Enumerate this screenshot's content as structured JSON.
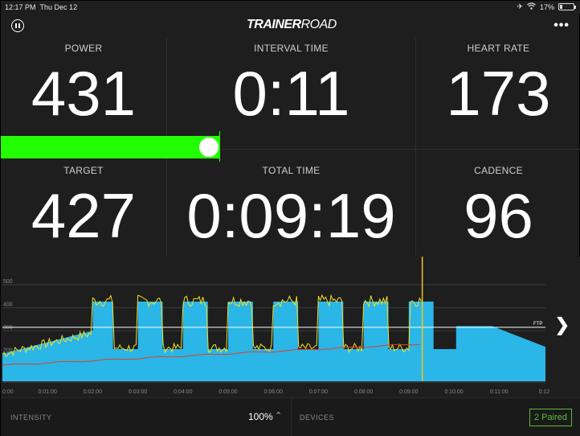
{
  "status_bar": {
    "time": "12:17 PM",
    "date": "Thu Dec 12",
    "battery": "17%",
    "icons": [
      "airplane-icon",
      "wifi-icon",
      "battery-icon"
    ]
  },
  "header": {
    "logo_bold": "TRAINER",
    "logo_thin": "ROAD",
    "pause_icon": "pause-icon",
    "more_icon": "more-icon"
  },
  "metrics": {
    "power": {
      "label": "POWER",
      "value": "431"
    },
    "interval_time": {
      "label": "INTERVAL TIME",
      "value": "0:11"
    },
    "heart_rate": {
      "label": "HEART RATE",
      "value": "173"
    },
    "target": {
      "label": "TARGET",
      "value": "427"
    },
    "total_time": {
      "label": "TOTAL TIME",
      "value": "0:09:19"
    },
    "cadence": {
      "label": "CADENCE",
      "value": "96"
    }
  },
  "power_bar": {
    "fill_color": "#22ff00"
  },
  "chart": {
    "y_ticks": [
      "500",
      "400",
      "300",
      "200"
    ],
    "x_ticks": [
      "0:00",
      "0:01:00",
      "0:02:00",
      "0:03:00",
      "0:04:00",
      "0:05:00",
      "0:06:00",
      "0:07:00",
      "0:08:00",
      "0:09:00",
      "0:10:00",
      "0:11:00",
      "0:12"
    ],
    "ftp_label": "FTP",
    "workout_color": "#2bb6e8",
    "power_color": "#f5e020",
    "hr_color": "#e0402a",
    "cursor_color": "#f5c518"
  },
  "footer": {
    "intensity_label": "INTENSITY",
    "intensity_value": "100%",
    "devices_label": "DEVICES",
    "paired_label": "2 Paired"
  }
}
